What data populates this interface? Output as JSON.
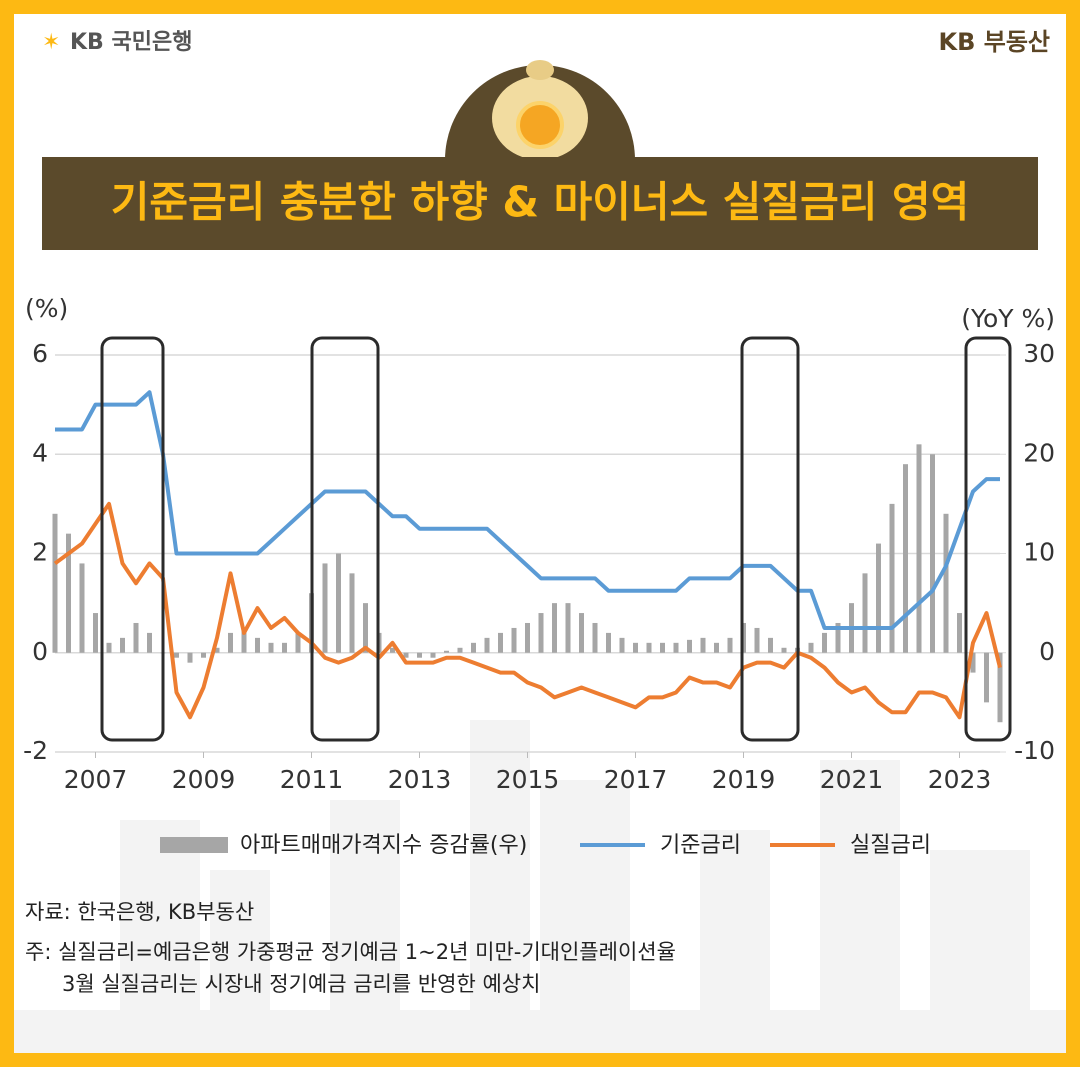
{
  "header": {
    "left_logo": "KB 국민은행",
    "right_logo": "KB 부동산"
  },
  "chart_data": {
    "type": "combo",
    "title": "기준금리 충분한 하향 & 마이너스 실질금리 영역",
    "y_label": "(%)",
    "y2_label": "(YoY %)",
    "source": "자료: 한국은행, KB부동산",
    "notes": [
      "주: 실질금리=예금은행 가중평균 정기예금 1~2년 미만-기대인플레이션율",
      "3월 실질금리는 시장내 정기예금 금리를 반영한 예상치"
    ],
    "x": [
      2006.25,
      2006.5,
      2006.75,
      2007,
      2007.25,
      2007.5,
      2007.75,
      2008,
      2008.25,
      2008.5,
      2008.75,
      2009,
      2009.25,
      2009.5,
      2009.75,
      2010,
      2010.25,
      2010.5,
      2010.75,
      2011,
      2011.25,
      2011.5,
      2011.75,
      2012,
      2012.25,
      2012.5,
      2012.75,
      2013,
      2013.25,
      2013.5,
      2013.75,
      2014,
      2014.25,
      2014.5,
      2014.75,
      2015,
      2015.25,
      2015.5,
      2015.75,
      2016,
      2016.25,
      2016.5,
      2016.75,
      2017,
      2017.25,
      2017.5,
      2017.75,
      2018,
      2018.25,
      2018.5,
      2018.75,
      2019,
      2019.25,
      2019.5,
      2019.75,
      2020,
      2020.25,
      2020.5,
      2020.75,
      2021,
      2021.25,
      2021.5,
      2021.75,
      2022,
      2022.25,
      2022.5,
      2022.75,
      2023,
      2023.25,
      2023.5,
      2023.75
    ],
    "xlim": [
      2006.25,
      2023.75
    ],
    "xticks": [
      2007,
      2009,
      2011,
      2013,
      2015,
      2017,
      2019,
      2021,
      2023
    ],
    "ylim": [
      -2,
      6
    ],
    "yticks": [
      -2,
      0,
      2,
      4,
      6
    ],
    "y2lim": [
      -10,
      30
    ],
    "y2ticks": [
      -10,
      0,
      10,
      20,
      30
    ],
    "grid": true,
    "series": [
      {
        "name": "아파트매매가격지수 증감률(우)",
        "type": "bar",
        "axis": "y2",
        "color": "#a6a6a6",
        "values": [
          14,
          12,
          9,
          4,
          1,
          1.5,
          3,
          2,
          0,
          -0.5,
          -1,
          -0.5,
          0.5,
          2,
          2.5,
          1.5,
          1,
          1,
          2,
          6,
          9,
          10,
          8,
          5,
          2,
          0.5,
          -0.5,
          -0.5,
          -0.5,
          0.2,
          0.5,
          1,
          1.5,
          2,
          2.5,
          3,
          4,
          5,
          5,
          4,
          3,
          2,
          1.5,
          1,
          1,
          1,
          1,
          1.3,
          1.5,
          1,
          1.5,
          3,
          2.5,
          1.5,
          0.5,
          0.5,
          1,
          2,
          3,
          5,
          8,
          11,
          15,
          19,
          21,
          20,
          14,
          4,
          -2,
          -5,
          -7
        ]
      },
      {
        "name": "기준금리",
        "type": "line",
        "color": "#5b9bd5",
        "values": [
          4.5,
          4.5,
          4.5,
          5,
          5,
          5,
          5,
          5.25,
          4,
          2,
          2,
          2,
          2,
          2,
          2,
          2,
          2.25,
          2.5,
          2.75,
          3,
          3.25,
          3.25,
          3.25,
          3.25,
          3,
          2.75,
          2.75,
          2.5,
          2.5,
          2.5,
          2.5,
          2.5,
          2.5,
          2.25,
          2,
          1.75,
          1.5,
          1.5,
          1.5,
          1.5,
          1.5,
          1.25,
          1.25,
          1.25,
          1.25,
          1.25,
          1.25,
          1.5,
          1.5,
          1.5,
          1.5,
          1.75,
          1.75,
          1.75,
          1.5,
          1.25,
          1.25,
          0.5,
          0.5,
          0.5,
          0.5,
          0.5,
          0.5,
          0.75,
          1,
          1.25,
          1.75,
          2.5,
          3.25,
          3.5,
          3.5
        ]
      },
      {
        "name": "실질금리",
        "type": "line",
        "color": "#ed7d31",
        "values": [
          1.8,
          2.0,
          2.2,
          2.6,
          3.0,
          1.8,
          1.4,
          1.8,
          1.5,
          -0.8,
          -1.3,
          -0.7,
          0.3,
          1.6,
          0.4,
          0.9,
          0.5,
          0.7,
          0.4,
          0.2,
          -0.1,
          -0.2,
          -0.1,
          0.1,
          -0.1,
          0.2,
          -0.2,
          -0.2,
          -0.2,
          -0.1,
          -0.1,
          -0.2,
          -0.3,
          -0.4,
          -0.4,
          -0.6,
          -0.7,
          -0.9,
          -0.8,
          -0.7,
          -0.8,
          -0.9,
          -1.0,
          -1.1,
          -0.9,
          -0.9,
          -0.8,
          -0.5,
          -0.6,
          -0.6,
          -0.7,
          -0.3,
          -0.2,
          -0.2,
          -0.3,
          0.0,
          -0.1,
          -0.3,
          -0.6,
          -0.8,
          -0.7,
          -1.0,
          -1.2,
          -1.2,
          -0.8,
          -0.8,
          -0.9,
          -1.3,
          0.2,
          0.8,
          -0.3
        ]
      }
    ]
  }
}
